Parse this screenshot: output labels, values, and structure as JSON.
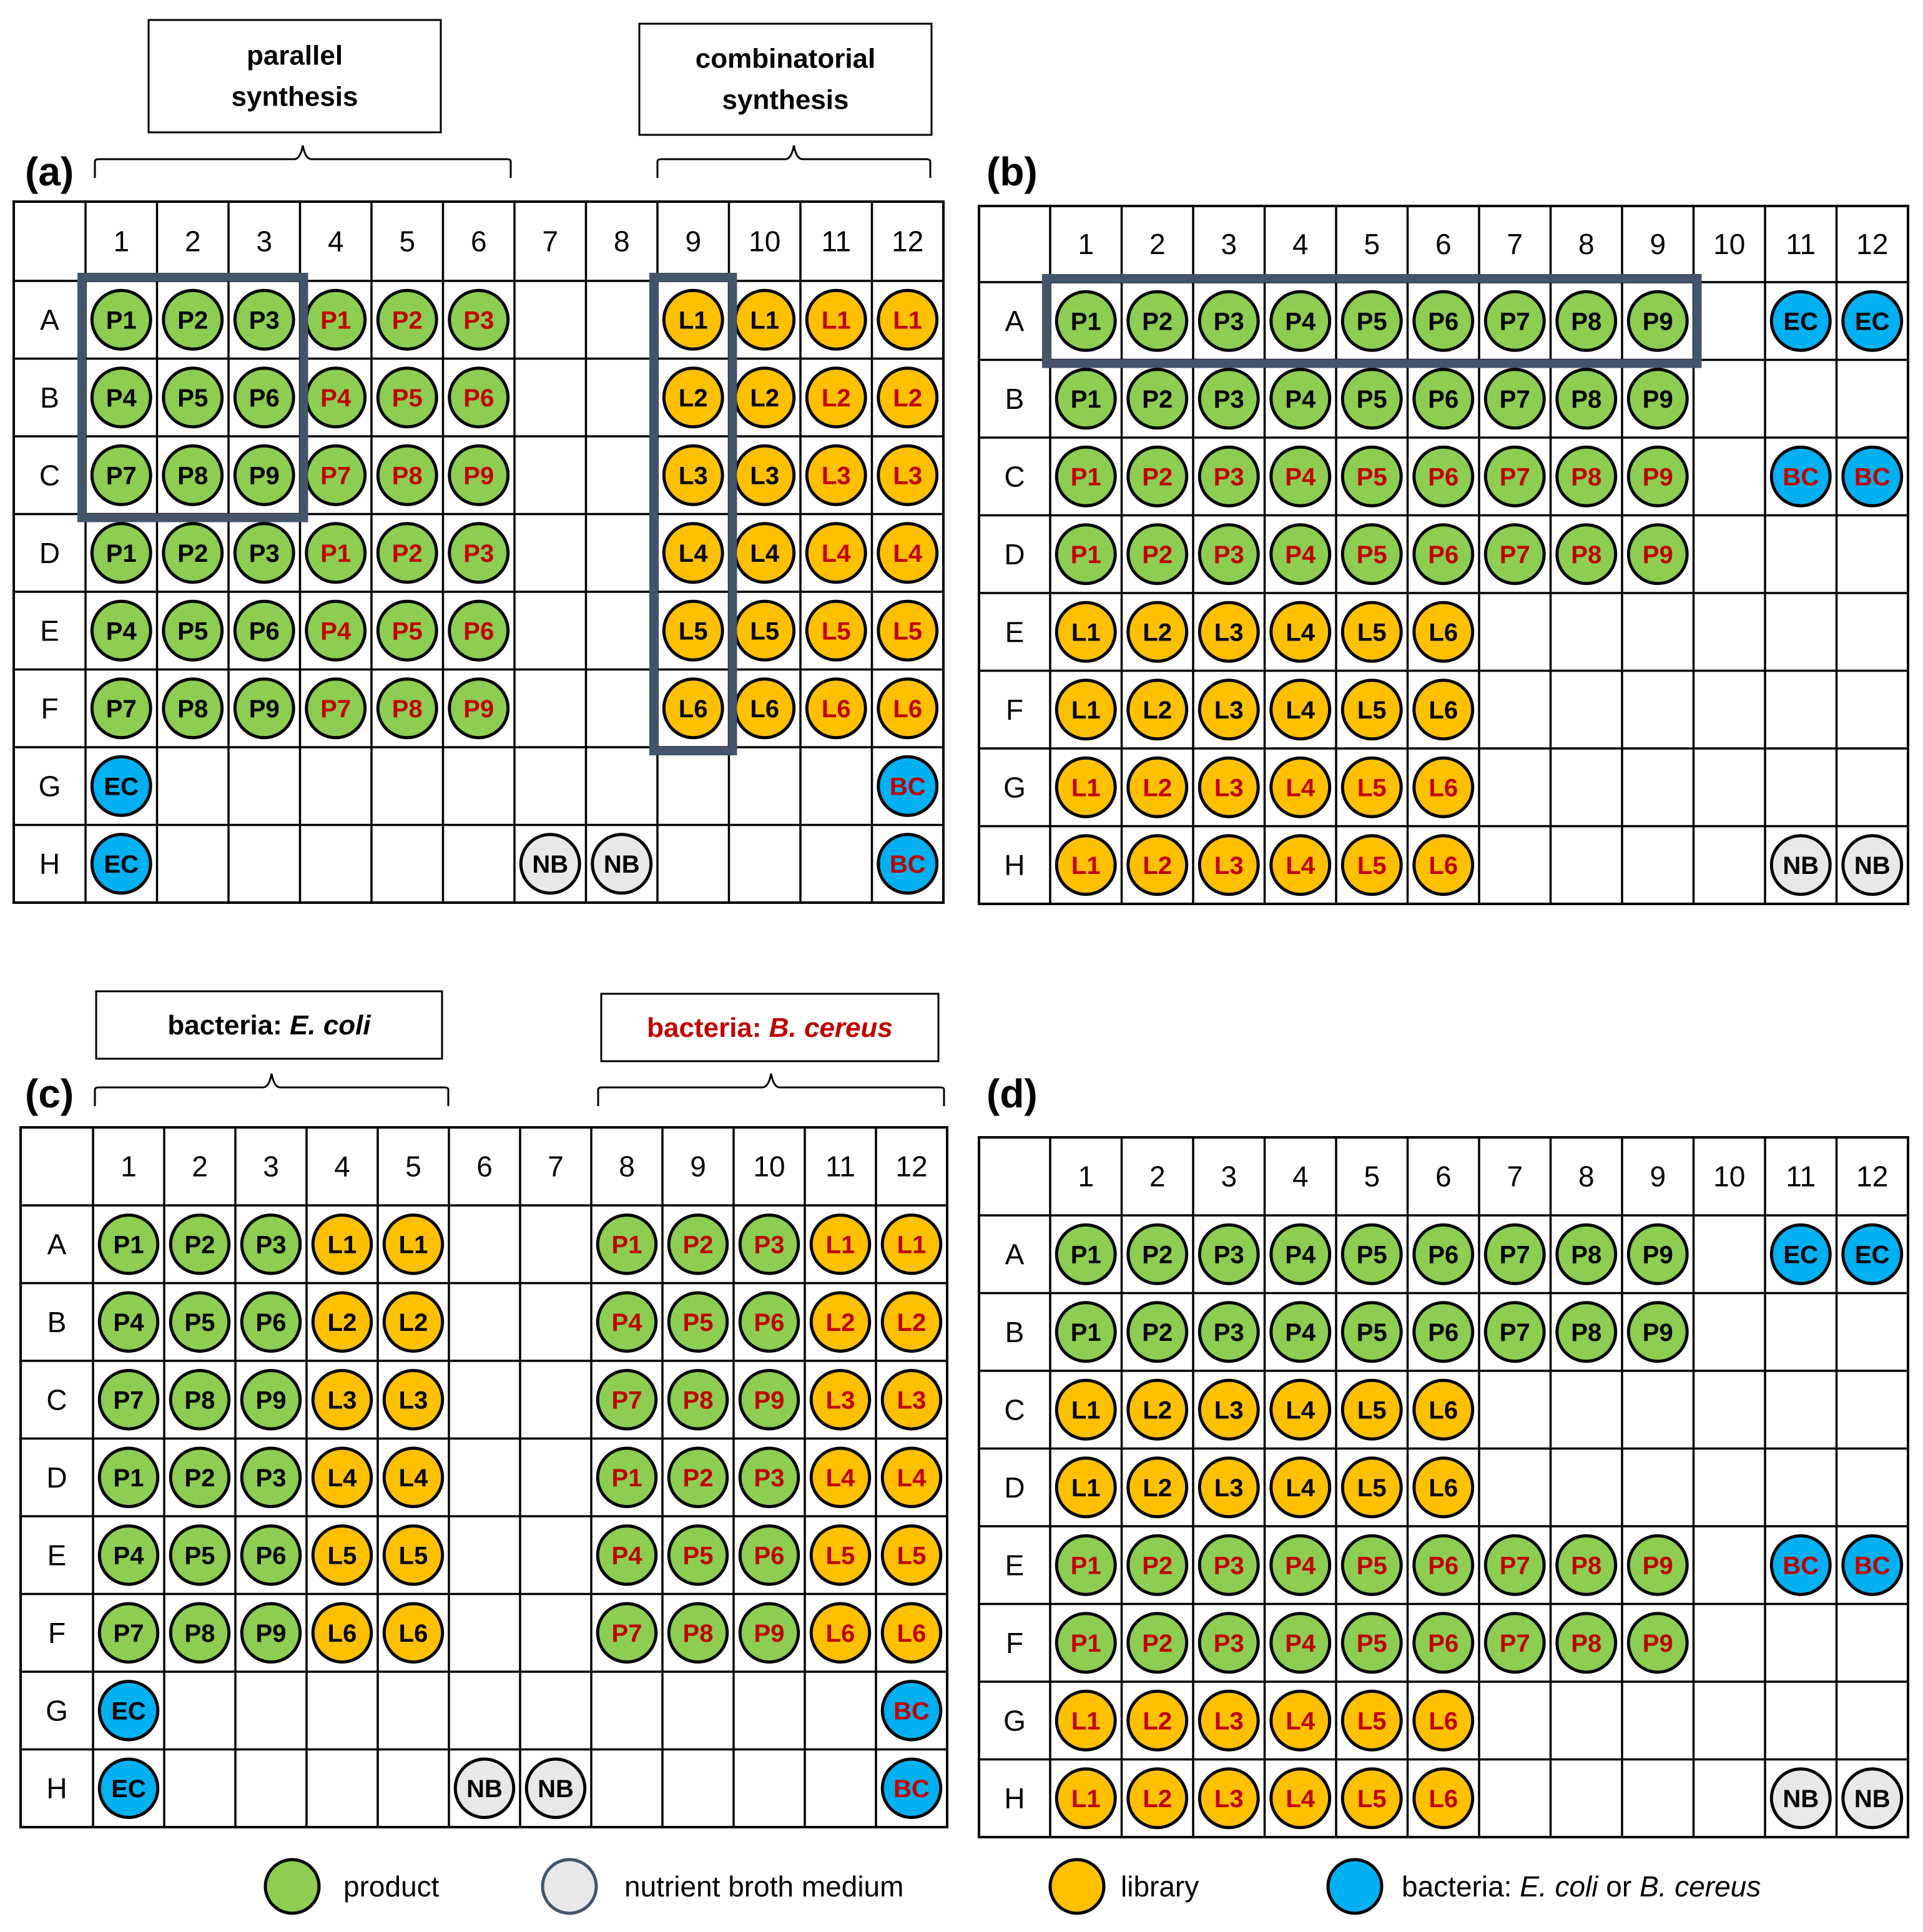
{
  "colors": {
    "product": "#8ccd52",
    "library": "#ffc000",
    "bacteria": "#00b0f0",
    "broth": "#e8e8e8",
    "text_black": "#000000",
    "text_red": "#c00000",
    "highlight": "#44546a"
  },
  "plate_columns": [
    "1",
    "2",
    "3",
    "4",
    "5",
    "6",
    "7",
    "8",
    "9",
    "10",
    "11",
    "12"
  ],
  "plate_rows": [
    "A",
    "B",
    "C",
    "D",
    "E",
    "F",
    "G",
    "H"
  ],
  "panels": [
    {
      "label": "(a)",
      "header_boxes": [
        {
          "lines": [
            "parallel",
            "synthesis"
          ],
          "red": false
        },
        {
          "lines": [
            "combinatorial",
            "synthesis"
          ],
          "red": false
        }
      ],
      "wells": [
        [
          "gP1",
          "gP2",
          "gP3",
          "rgP1",
          "rgP2",
          "rgP3",
          "",
          "",
          "yL1",
          "yL1",
          "ryL1",
          "ryL1"
        ],
        [
          "gP4",
          "gP5",
          "gP6",
          "rgP4",
          "rgP5",
          "rgP6",
          "",
          "",
          "yL2",
          "yL2",
          "ryL2",
          "ryL2"
        ],
        [
          "gP7",
          "gP8",
          "gP9",
          "rgP7",
          "rgP8",
          "rgP9",
          "",
          "",
          "yL3",
          "yL3",
          "ryL3",
          "ryL3"
        ],
        [
          "gP1",
          "gP2",
          "gP3",
          "rgP1",
          "rgP2",
          "rgP3",
          "",
          "",
          "yL4",
          "yL4",
          "ryL4",
          "ryL4"
        ],
        [
          "gP4",
          "gP5",
          "gP6",
          "rgP4",
          "rgP5",
          "rgP6",
          "",
          "",
          "yL5",
          "yL5",
          "ryL5",
          "ryL5"
        ],
        [
          "gP7",
          "gP8",
          "gP9",
          "rgP7",
          "rgP8",
          "rgP9",
          "",
          "",
          "yL6",
          "yL6",
          "ryL6",
          "ryL6"
        ],
        [
          "bEC",
          "",
          "",
          "",
          "",
          "",
          "",
          "",
          "",
          "",
          "",
          "rbBC"
        ],
        [
          "bEC",
          "",
          "",
          "",
          "",
          "",
          "nNB",
          "nNB",
          "",
          "",
          "",
          "rbBC"
        ]
      ]
    },
    {
      "label": "(b)",
      "header_boxes": [],
      "wells": [
        [
          "gP1",
          "gP2",
          "gP3",
          "gP4",
          "gP5",
          "gP6",
          "gP7",
          "gP8",
          "gP9",
          "",
          "bEC",
          "bEC"
        ],
        [
          "gP1",
          "gP2",
          "gP3",
          "gP4",
          "gP5",
          "gP6",
          "gP7",
          "gP8",
          "gP9",
          "",
          "",
          ""
        ],
        [
          "rgP1",
          "rgP2",
          "rgP3",
          "rgP4",
          "rgP5",
          "rgP6",
          "rgP7",
          "rgP8",
          "rgP9",
          "",
          "rbBC",
          "rbBC"
        ],
        [
          "rgP1",
          "rgP2",
          "rgP3",
          "rgP4",
          "rgP5",
          "rgP6",
          "rgP7",
          "rgP8",
          "rgP9",
          "",
          "",
          ""
        ],
        [
          "yL1",
          "yL2",
          "yL3",
          "yL4",
          "yL5",
          "yL6",
          "",
          "",
          "",
          "",
          "",
          ""
        ],
        [
          "yL1",
          "yL2",
          "yL3",
          "yL4",
          "yL5",
          "yL6",
          "",
          "",
          "",
          "",
          "",
          ""
        ],
        [
          "ryL1",
          "ryL2",
          "ryL3",
          "ryL4",
          "ryL5",
          "ryL6",
          "",
          "",
          "",
          "",
          "",
          ""
        ],
        [
          "ryL1",
          "ryL2",
          "ryL3",
          "ryL4",
          "ryL5",
          "ryL6",
          "",
          "",
          "",
          "",
          "nNB",
          "nNB"
        ]
      ]
    },
    {
      "label": "(c)",
      "header_boxes": [
        {
          "prefix": "bacteria: ",
          "italic": "E. coli",
          "red": false
        },
        {
          "prefix": "bacteria: ",
          "italic": "B. cereus",
          "red": true
        }
      ],
      "wells": [
        [
          "gP1",
          "gP2",
          "gP3",
          "yL1",
          "yL1",
          "",
          "",
          "rgP1",
          "rgP2",
          "rgP3",
          "ryL1",
          "ryL1"
        ],
        [
          "gP4",
          "gP5",
          "gP6",
          "yL2",
          "yL2",
          "",
          "",
          "rgP4",
          "rgP5",
          "rgP6",
          "ryL2",
          "ryL2"
        ],
        [
          "gP7",
          "gP8",
          "gP9",
          "yL3",
          "yL3",
          "",
          "",
          "rgP7",
          "rgP8",
          "rgP9",
          "ryL3",
          "ryL3"
        ],
        [
          "gP1",
          "gP2",
          "gP3",
          "yL4",
          "yL4",
          "",
          "",
          "rgP1",
          "rgP2",
          "rgP3",
          "ryL4",
          "ryL4"
        ],
        [
          "gP4",
          "gP5",
          "gP6",
          "yL5",
          "yL5",
          "",
          "",
          "rgP4",
          "rgP5",
          "rgP6",
          "ryL5",
          "ryL5"
        ],
        [
          "gP7",
          "gP8",
          "gP9",
          "yL6",
          "yL6",
          "",
          "",
          "rgP7",
          "rgP8",
          "rgP9",
          "ryL6",
          "ryL6"
        ],
        [
          "bEC",
          "",
          "",
          "",
          "",
          "",
          "",
          "",
          "",
          "",
          "",
          "rbBC"
        ],
        [
          "bEC",
          "",
          "",
          "",
          "",
          "nNB",
          "nNB",
          "",
          "",
          "",
          "",
          "rbBC"
        ]
      ]
    },
    {
      "label": "(d)",
      "header_boxes": [],
      "wells": [
        [
          "gP1",
          "gP2",
          "gP3",
          "gP4",
          "gP5",
          "gP6",
          "gP7",
          "gP8",
          "gP9",
          "",
          "bEC",
          "bEC"
        ],
        [
          "gP1",
          "gP2",
          "gP3",
          "gP4",
          "gP5",
          "gP6",
          "gP7",
          "gP8",
          "gP9",
          "",
          "",
          ""
        ],
        [
          "yL1",
          "yL2",
          "yL3",
          "yL4",
          "yL5",
          "yL6",
          "",
          "",
          "",
          "",
          "",
          ""
        ],
        [
          "yL1",
          "yL2",
          "yL3",
          "yL4",
          "yL5",
          "yL6",
          "",
          "",
          "",
          "",
          "",
          ""
        ],
        [
          "rgP1",
          "rgP2",
          "rgP3",
          "rgP4",
          "rgP5",
          "rgP6",
          "rgP7",
          "rgP8",
          "rgP9",
          "",
          "rbBC",
          "rbBC"
        ],
        [
          "rgP1",
          "rgP2",
          "rgP3",
          "rgP4",
          "rgP5",
          "rgP6",
          "rgP7",
          "rgP8",
          "rgP9",
          "",
          "",
          ""
        ],
        [
          "ryL1",
          "ryL2",
          "ryL3",
          "ryL4",
          "ryL5",
          "ryL6",
          "",
          "",
          "",
          "",
          "",
          ""
        ],
        [
          "ryL1",
          "ryL2",
          "ryL3",
          "ryL4",
          "ryL5",
          "ryL6",
          "",
          "",
          "",
          "",
          "nNB",
          "nNB"
        ]
      ]
    }
  ],
  "legend": [
    {
      "kind": "product",
      "label": "product"
    },
    {
      "kind": "broth",
      "label": "nutrient broth medium"
    },
    {
      "kind": "library",
      "label": "library"
    },
    {
      "kind": "bacteria",
      "label": "bacteria: ",
      "italic_1": "E. coli",
      "middle": " or ",
      "italic_2": "B. cereus"
    }
  ]
}
